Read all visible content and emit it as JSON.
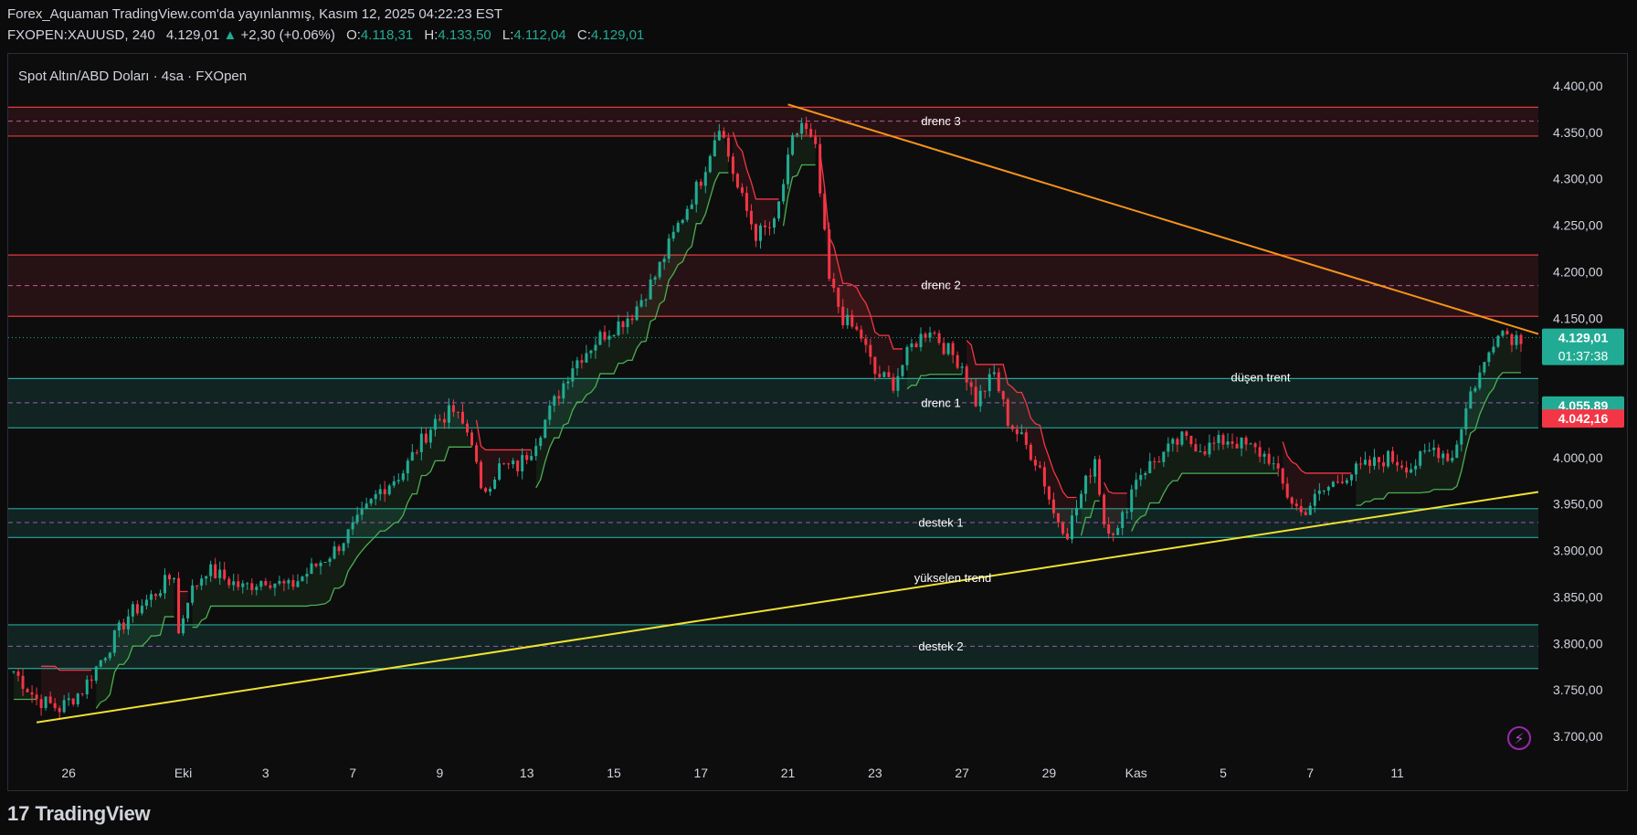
{
  "header": {
    "line1": "Forex_Aquaman TradingView.com'da yayınlanmış, Kasım 12, 2025 04:22:23 EST",
    "symbol": "FXOPEN:XAUUSD, 240",
    "last": "4.129,01",
    "arrow": "▲",
    "change": "+2,30 (+0.06%)",
    "o_label": "O:",
    "o": "4.118,31",
    "h_label": "H:",
    "h": "4.133,50",
    "l_label": "L:",
    "l": "4.112,04",
    "c_label": "C:",
    "c": "4.129,01"
  },
  "legend": "Spot Altın/ABD Doları · 4sa · FXOpen",
  "footer": {
    "brand": "TradingView",
    "mark": "17"
  },
  "colors": {
    "up": "#22ab94",
    "down": "#f23645",
    "resistance": "#e03a3e",
    "support": "#26a69a",
    "trend_down": "#f7931a",
    "trend_up": "#f0e130",
    "background": "#0d0d0e"
  },
  "chart_data": {
    "type": "candlestick",
    "y_ticks": [
      "4.400,00",
      "4.350,00",
      "4.300,00",
      "4.250,00",
      "4.200,00",
      "4.150,00",
      "4.100,00",
      "4.050,00",
      "4.000,00",
      "3.950,00",
      "3.900,00",
      "3.850,00",
      "3.800,00",
      "3.750,00",
      "3.700,00"
    ],
    "y_tick_values": [
      4400,
      4350,
      4300,
      4250,
      4200,
      4150,
      4100,
      4050,
      4000,
      3950,
      3900,
      3850,
      3800,
      3750,
      3700
    ],
    "ylim": [
      3680,
      4420
    ],
    "x_ticks": [
      "26",
      "Eki",
      "3",
      "7",
      "9",
      "13",
      "15",
      "17",
      "21",
      "23",
      "27",
      "29",
      "Kas",
      "5",
      "7",
      "11"
    ],
    "x_tick_bars": [
      12,
      37,
      55,
      74,
      93,
      112,
      131,
      150,
      169,
      188,
      207,
      226,
      245,
      264,
      283,
      302
    ],
    "bar_count": 330,
    "zones": [
      {
        "label": "drenc 3",
        "top": 4377,
        "bottom": 4346,
        "mid": 4362,
        "kind": "resistance"
      },
      {
        "label": "drenc 2",
        "top": 4218,
        "bottom": 4152,
        "mid": 4185,
        "kind": "resistance"
      },
      {
        "label": "drenc 1",
        "top": 4085,
        "bottom": 4032,
        "mid": 4059,
        "kind": "support"
      },
      {
        "label": "destek 1",
        "top": 3945,
        "bottom": 3914,
        "mid": 3930,
        "kind": "support"
      },
      {
        "label": "destek 2",
        "top": 3820,
        "bottom": 3773,
        "mid": 3797,
        "kind": "support"
      }
    ],
    "trendlines": [
      {
        "label": "düşen trent",
        "from": [
          169,
          4380
        ],
        "to": [
          330,
          4133
        ],
        "color": "#f7931a"
      },
      {
        "label": "yükselen trend",
        "from": [
          5,
          3715
        ],
        "to": [
          330,
          3963
        ],
        "color": "#f0e130"
      }
    ],
    "annotations": [
      "düşen trent",
      "yükselen trend"
    ],
    "price_labels": [
      {
        "price": "4.129,01",
        "value": 4129,
        "sub": "01:37:38",
        "color": "#22ab94"
      },
      {
        "price": "4.055,89",
        "value": 4056,
        "color": "#22ab94"
      },
      {
        "price": "4.042,16",
        "value": 4042,
        "color": "#f23645"
      }
    ],
    "keypoints": [
      [
        0,
        3770
      ],
      [
        5,
        3740
      ],
      [
        10,
        3730
      ],
      [
        15,
        3750
      ],
      [
        20,
        3790
      ],
      [
        25,
        3830
      ],
      [
        30,
        3850
      ],
      [
        35,
        3875
      ],
      [
        36,
        3810
      ],
      [
        38,
        3850
      ],
      [
        42,
        3880
      ],
      [
        46,
        3870
      ],
      [
        50,
        3860
      ],
      [
        55,
        3870
      ],
      [
        60,
        3860
      ],
      [
        65,
        3880
      ],
      [
        70,
        3900
      ],
      [
        75,
        3930
      ],
      [
        80,
        3965
      ],
      [
        85,
        3985
      ],
      [
        88,
        4010
      ],
      [
        92,
        4040
      ],
      [
        96,
        4050
      ],
      [
        100,
        4020
      ],
      [
        102,
        3960
      ],
      [
        106,
        3990
      ],
      [
        110,
        3990
      ],
      [
        113,
        4010
      ],
      [
        117,
        4050
      ],
      [
        122,
        4100
      ],
      [
        128,
        4130
      ],
      [
        135,
        4155
      ],
      [
        140,
        4195
      ],
      [
        145,
        4250
      ],
      [
        150,
        4300
      ],
      [
        154,
        4360
      ],
      [
        158,
        4290
      ],
      [
        162,
        4240
      ],
      [
        166,
        4250
      ],
      [
        170,
        4340
      ],
      [
        172,
        4360
      ],
      [
        175,
        4330
      ],
      [
        178,
        4190
      ],
      [
        181,
        4150
      ],
      [
        185,
        4130
      ],
      [
        188,
        4090
      ],
      [
        192,
        4080
      ],
      [
        196,
        4120
      ],
      [
        200,
        4140
      ],
      [
        203,
        4120
      ],
      [
        207,
        4100
      ],
      [
        210,
        4060
      ],
      [
        214,
        4090
      ],
      [
        217,
        4040
      ],
      [
        220,
        4020
      ],
      [
        224,
        3990
      ],
      [
        227,
        3940
      ],
      [
        230,
        3920
      ],
      [
        233,
        3960
      ],
      [
        236,
        4000
      ],
      [
        238,
        3930
      ],
      [
        241,
        3920
      ],
      [
        245,
        3980
      ],
      [
        250,
        4000
      ],
      [
        255,
        4020
      ],
      [
        260,
        4010
      ],
      [
        265,
        4020
      ],
      [
        270,
        4010
      ],
      [
        274,
        4000
      ],
      [
        278,
        3960
      ],
      [
        281,
        3940
      ],
      [
        285,
        3960
      ],
      [
        290,
        3980
      ],
      [
        295,
        3990
      ],
      [
        300,
        4000
      ],
      [
        305,
        3990
      ],
      [
        310,
        4010
      ],
      [
        314,
        4000
      ],
      [
        318,
        4070
      ],
      [
        321,
        4100
      ],
      [
        324,
        4140
      ],
      [
        327,
        4130
      ],
      [
        330,
        4129
      ]
    ]
  }
}
